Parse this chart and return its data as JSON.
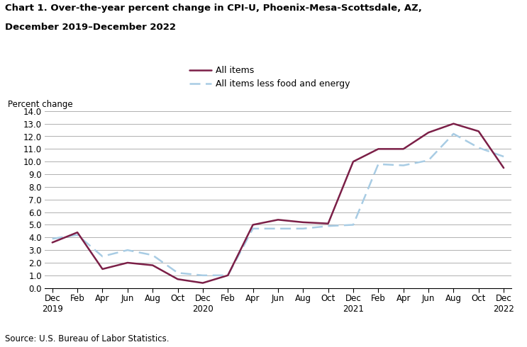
{
  "title_line1": "Chart 1. Over-the-year percent change in CPI-U, Phoenix-Mesa-Scottsdale, AZ,",
  "title_line2": "December 2019–December 2022",
  "ylabel": "Percent change",
  "source": "Source: U.S. Bureau of Labor Statistics.",
  "legend_all": "All items",
  "legend_core": "All items less food and energy",
  "all_items_color": "#7b1f47",
  "core_color": "#a8cce4",
  "x_labels": [
    "Dec\n2019",
    "Feb",
    "Apr",
    "Jun",
    "Aug",
    "Oct",
    "Dec\n2020",
    "Feb",
    "Apr",
    "Jun",
    "Aug",
    "Oct",
    "Dec\n2021",
    "Feb",
    "Apr",
    "Jun",
    "Aug",
    "Oct",
    "Dec\n2022"
  ],
  "all_items": [
    3.6,
    4.4,
    1.5,
    2.0,
    1.8,
    0.7,
    0.4,
    1.0,
    5.0,
    5.4,
    5.2,
    5.1,
    10.0,
    11.0,
    11.0,
    12.3,
    13.0,
    12.4,
    9.5
  ],
  "core_items": [
    3.9,
    4.2,
    2.5,
    3.0,
    2.6,
    1.2,
    1.0,
    1.0,
    4.7,
    4.7,
    4.7,
    4.9,
    5.0,
    9.8,
    9.7,
    10.1,
    12.2,
    11.1,
    10.4
  ],
  "ylim": [
    0,
    14.0
  ],
  "yticks": [
    0.0,
    1.0,
    2.0,
    3.0,
    4.0,
    5.0,
    6.0,
    7.0,
    8.0,
    9.0,
    10.0,
    11.0,
    12.0,
    13.0,
    14.0
  ],
  "background_color": "#ffffff",
  "grid_color": "#b0b0b0"
}
